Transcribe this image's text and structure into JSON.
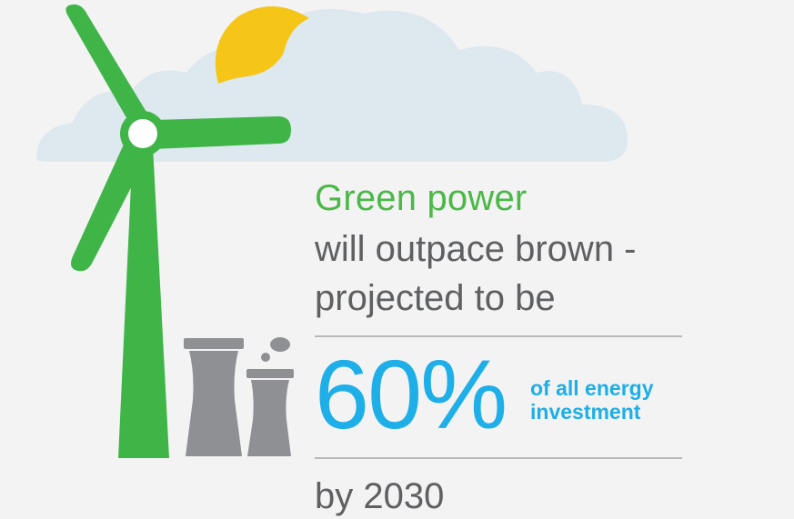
{
  "headline": {
    "green_text": "Green power",
    "line_1": "will outpace brown -",
    "line_2": "projected to be"
  },
  "stat": {
    "value": "60%",
    "note_line_1": "of all energy",
    "note_line_2": "investment"
  },
  "footer": {
    "text": "by 2030"
  },
  "colors": {
    "green": "#4cb848",
    "blue": "#1eaee8",
    "gray_text": "#5f6062",
    "factory_gray": "#8e9093",
    "cloud": "#d9e6ee",
    "sun": "#f5c518"
  }
}
